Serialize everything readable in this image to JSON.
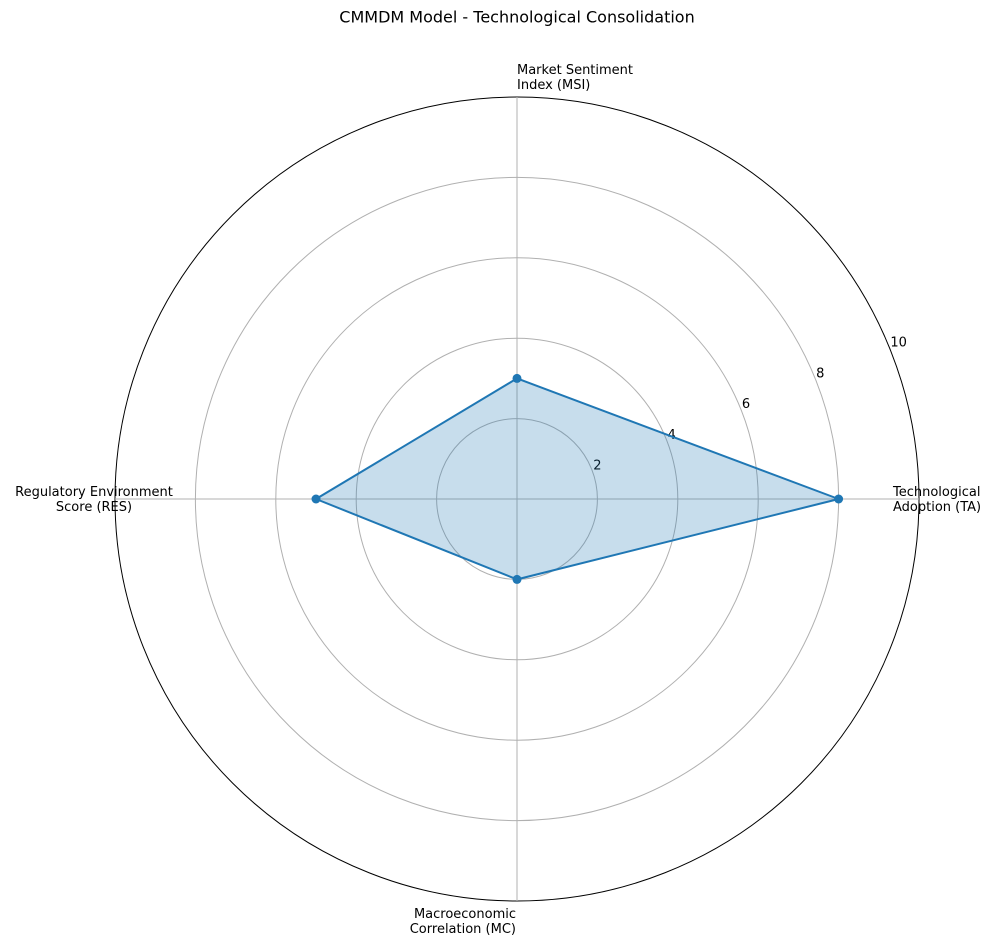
{
  "chart_data": {
    "type": "radar",
    "title": "CMMDM Model - Technological Consolidation",
    "categories": [
      "Technological\nAdoption (TA)",
      "Market Sentiment\nIndex (MSI)",
      "Regulatory Environment\nScore (RES)",
      "Macroeconomic\nCorrelation (MC)"
    ],
    "values": [
      8,
      3,
      5,
      2
    ],
    "color": "#1f77b4",
    "ylim": [
      0,
      10
    ],
    "yticks": [
      2,
      4,
      6,
      8,
      10
    ],
    "grid": true
  }
}
